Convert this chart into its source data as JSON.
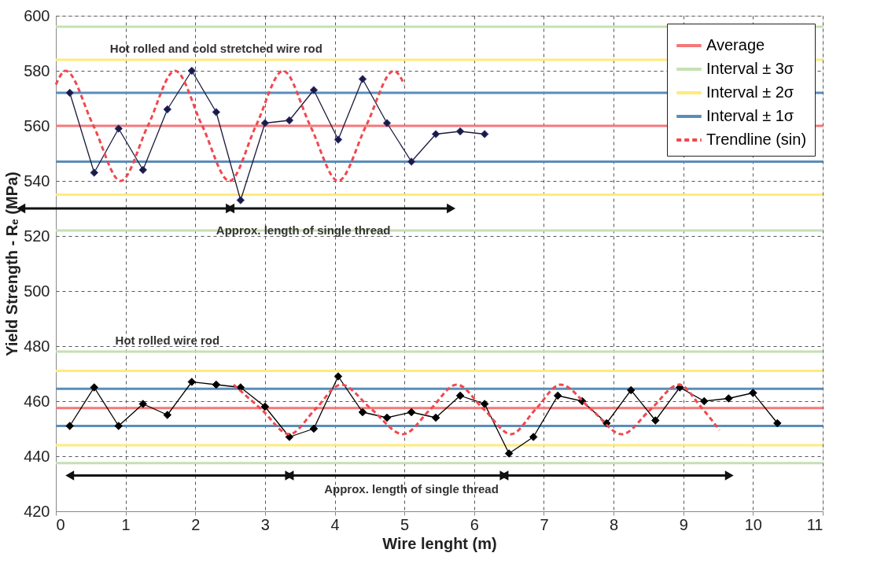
{
  "chart_data": {
    "type": "line",
    "xlabel": "Wire lenght (m)",
    "ylabel": "Yield Strength - Rₑ (MPa)",
    "xlim": [
      0,
      11
    ],
    "xticks": [
      0,
      1,
      2,
      3,
      4,
      5,
      6,
      7,
      8,
      9,
      10,
      11
    ],
    "ylim": [
      420,
      600
    ],
    "yticks": [
      420,
      440,
      460,
      480,
      500,
      520,
      540,
      560,
      580,
      600
    ],
    "grid": true,
    "legend": "top right",
    "marker": "diamond",
    "series": [
      {
        "color": "#1b1b3b",
        "x": [
          0.2,
          0.55,
          0.9,
          1.25,
          1.6,
          1.95,
          2.3,
          2.65,
          3.0,
          3.35,
          3.7,
          4.05,
          4.4,
          4.75,
          5.1,
          5.45,
          5.8,
          6.15
        ],
        "values": [
          572,
          543,
          559,
          544,
          566,
          580,
          565,
          533,
          561,
          562,
          573,
          555,
          577,
          561,
          547,
          557,
          558,
          557
        ]
      },
      {
        "color": "#000000",
        "x": [
          0.2,
          0.55,
          0.9,
          1.25,
          1.6,
          1.95,
          2.3,
          2.65,
          3.0,
          3.35,
          3.7,
          4.05,
          4.4,
          4.75,
          5.1,
          5.45,
          5.8,
          6.15,
          6.5,
          6.85,
          7.2,
          7.55,
          7.9,
          8.25,
          8.6,
          8.95,
          9.3,
          9.65,
          10.0,
          10.35
        ],
        "values": [
          451,
          465,
          451,
          459,
          455,
          467,
          466,
          465,
          458,
          447,
          450,
          469,
          456,
          454,
          456,
          454,
          462,
          459,
          441,
          447,
          462,
          460,
          452,
          464,
          453,
          465,
          460,
          461,
          463,
          452
        ]
      },
      {
        "name": "Trendline (sin)",
        "color": "#f0484e",
        "line_style": "dashed",
        "marker": "none",
        "x": [
          0,
          0.14,
          0.54,
          0.93,
          1.32,
          1.71,
          2.1,
          2.49,
          2.87,
          3.26,
          3.65,
          4.05,
          4.45,
          4.85,
          5.0
        ],
        "values": [
          575,
          580,
          560,
          540,
          560,
          580,
          560,
          540,
          560,
          580,
          560,
          540,
          560,
          580,
          575
        ]
      },
      {
        "color": "#f0484e",
        "line_style": "dashed",
        "marker": "none",
        "x": [
          2.55,
          2.95,
          3.35,
          3.72,
          4.09,
          4.53,
          4.98,
          5.37,
          5.75,
          6.14,
          6.53,
          6.88,
          7.24,
          7.68,
          8.12,
          8.53,
          8.94,
          9.25,
          9.52
        ],
        "values": [
          466,
          457,
          448,
          457,
          466,
          457,
          448,
          457,
          466,
          457,
          448,
          457,
          466,
          457,
          448,
          457,
          466,
          458,
          449.5
        ]
      }
    ],
    "ref_lines": [
      {
        "axis": "y",
        "value": 560,
        "label": "Average",
        "color": "#f4787a"
      },
      {
        "axis": "y",
        "value": 596,
        "label": "Interval ± 3σ",
        "color": "#c6e0b4"
      },
      {
        "axis": "y",
        "value": 522,
        "color": "#c6e0b4"
      },
      {
        "axis": "y",
        "value": 478,
        "color": "#c6e0b4"
      },
      {
        "axis": "y",
        "value": 437.5,
        "color": "#c6e0b4"
      },
      {
        "axis": "y",
        "value": 584,
        "label": "Interval ± 2σ",
        "color": "#ffeb7a"
      },
      {
        "axis": "y",
        "value": 535,
        "color": "#ffeb7a"
      },
      {
        "axis": "y",
        "value": 471,
        "color": "#ffeb7a"
      },
      {
        "axis": "y",
        "value": 444,
        "color": "#ffeb7a"
      },
      {
        "axis": "y",
        "value": 572,
        "label": "Interval ± 1σ",
        "color": "#5b8db8"
      },
      {
        "axis": "y",
        "value": 547,
        "color": "#5b8db8"
      },
      {
        "axis": "y",
        "value": 464.5,
        "color": "#5b8db8"
      },
      {
        "axis": "y",
        "value": 451,
        "color": "#5b8db8"
      },
      {
        "axis": "y",
        "value": 457.5,
        "color": "#f4787a"
      }
    ],
    "annotations": [
      "Hot rolled  and cold stretched wire rod",
      "Approx. length of single thread",
      "Hot rolled wire rod",
      "Approx. length of single thread"
    ]
  }
}
